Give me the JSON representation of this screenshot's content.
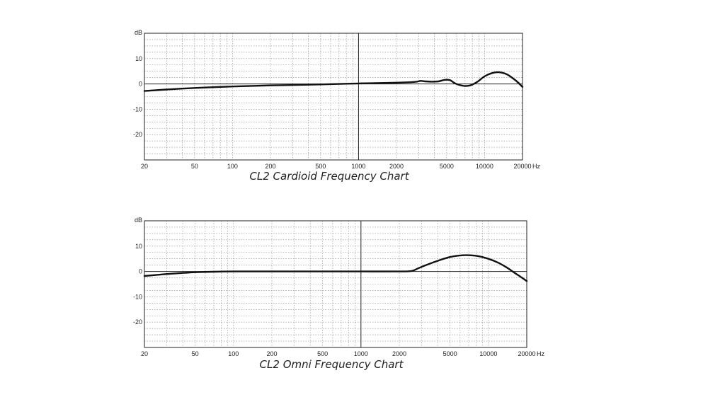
{
  "chart_data": [
    {
      "type": "line",
      "title": "CL2 Cardioid Frequency Chart",
      "ylabel": "dB",
      "xunit": "Hz",
      "xscale": "log",
      "xlim": [
        20,
        20000
      ],
      "ylim": [
        -30,
        20
      ],
      "grid": true,
      "x_tick_labels": [
        "20",
        "50",
        "100",
        "200",
        "500",
        "1000",
        "2000",
        "5000",
        "10000",
        "20000"
      ],
      "y_tick_labels": [
        "10",
        "0",
        "-10",
        "-20"
      ],
      "series": [
        {
          "x": [
            20,
            30,
            50,
            100,
            200,
            500,
            1000,
            2000,
            2800,
            3100,
            3400,
            3800,
            4300,
            4800,
            5300,
            5800,
            6300,
            7000,
            7800,
            8800,
            10000,
            11500,
            13000,
            15000,
            17000,
            18500,
            20000
          ],
          "y": [
            -2.8,
            -2.2,
            -1.6,
            -1.0,
            -0.6,
            -0.2,
            0.2,
            0.5,
            0.8,
            1.2,
            1.0,
            0.9,
            1.0,
            1.6,
            1.5,
            0.3,
            -0.4,
            -0.8,
            -0.5,
            0.9,
            3.0,
            4.3,
            4.6,
            3.8,
            2.0,
            0.5,
            -1.2
          ]
        }
      ]
    },
    {
      "type": "line",
      "title": "CL2 Omni Frequency Chart",
      "ylabel": "dB",
      "xunit": "Hz",
      "xscale": "log",
      "xlim": [
        20,
        20000
      ],
      "ylim": [
        -30,
        20
      ],
      "grid": true,
      "x_tick_labels": [
        "20",
        "50",
        "100",
        "200",
        "500",
        "1000",
        "2000",
        "5000",
        "10000",
        "20000"
      ],
      "y_tick_labels": [
        "10",
        "0",
        "-10",
        "-20"
      ],
      "series": [
        {
          "x": [
            20,
            30,
            40,
            50,
            70,
            100,
            200,
            500,
            1000,
            2000,
            2500,
            2800,
            3200,
            4000,
            5000,
            6300,
            8000,
            10000,
            12000,
            14000,
            16000,
            18000,
            20000
          ],
          "y": [
            -1.8,
            -1.0,
            -0.6,
            -0.3,
            -0.1,
            0.0,
            0.0,
            0.0,
            0.0,
            0.0,
            0.2,
            1.2,
            2.4,
            4.2,
            5.7,
            6.4,
            6.2,
            5.0,
            3.4,
            1.5,
            -0.5,
            -2.2,
            -3.8
          ]
        }
      ]
    }
  ]
}
